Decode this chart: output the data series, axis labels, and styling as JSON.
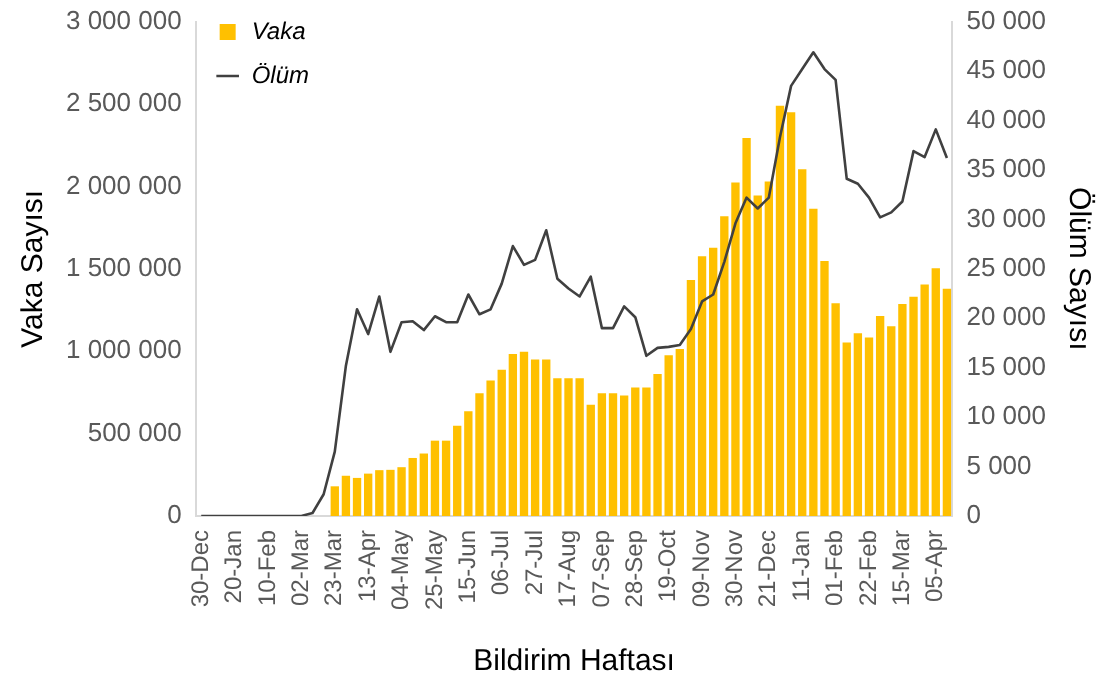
{
  "chart_data": {
    "type": "bar",
    "xlabel": "Bildirim Haftası",
    "ylabel": "Vaka Sayısı",
    "y2label": "Ölüm Sayısı",
    "categories": [
      "30-Dec",
      null,
      null,
      "20-Jan",
      null,
      null,
      "10-Feb",
      null,
      null,
      "02-Mar",
      null,
      null,
      "23-Mar",
      null,
      null,
      "13-Apr",
      null,
      null,
      "04-May",
      null,
      null,
      "25-May",
      null,
      null,
      "15-Jun",
      null,
      null,
      "06-Jul",
      null,
      null,
      "27-Jul",
      null,
      null,
      "17-Aug",
      null,
      null,
      "07-Sep",
      null,
      null,
      "28-Sep",
      null,
      null,
      "19-Oct",
      null,
      null,
      "09-Nov",
      null,
      null,
      "30-Nov",
      null,
      null,
      "21-Dec",
      null,
      null,
      "11-Jan",
      null,
      null,
      "01-Feb",
      null,
      null,
      "22-Feb",
      null,
      null,
      "15-Mar",
      null,
      null,
      "05-Apr",
      null
    ],
    "series": [
      {
        "name": "Vaka",
        "color": "#ffc000",
        "values": [
          0,
          0,
          0,
          0,
          0,
          0,
          0,
          0,
          0,
          0,
          0,
          0,
          180000,
          244000,
          231000,
          257000,
          278000,
          280000,
          296000,
          352000,
          379000,
          457000,
          457000,
          548000,
          636000,
          744000,
          822000,
          888000,
          983000,
          996000,
          949000,
          949000,
          835000,
          835000,
          835000,
          675000,
          744000,
          744000,
          731000,
          779000,
          779000,
          862000,
          975000,
          1014000,
          1432000,
          1576000,
          1628000,
          1819000,
          2023000,
          2293000,
          1945000,
          2030000,
          2489000,
          2450000,
          2104000,
          1865000,
          1548000,
          1291000,
          1052000,
          1109000,
          1083000,
          1213000,
          1152000,
          1287000,
          1330000,
          1405000,
          1504000,
          1379000
        ]
      },
      {
        "name": "Ölüm",
        "type": "line",
        "axis": "y2",
        "color": "#404040",
        "values": [
          0,
          0,
          0,
          0,
          0,
          0,
          0,
          0,
          0,
          0,
          300,
          2200,
          6500,
          15200,
          20900,
          18400,
          22200,
          16600,
          19600,
          19700,
          18800,
          20200,
          19600,
          19600,
          22400,
          20400,
          20900,
          23500,
          27300,
          25400,
          25900,
          28900,
          24000,
          23000,
          22200,
          24200,
          19000,
          19000,
          21200,
          20100,
          16200,
          17000,
          17100,
          17300,
          18900,
          21700,
          22400,
          25700,
          29600,
          32200,
          31100,
          32200,
          38300,
          43500,
          45200,
          46900,
          45200,
          44100,
          34100,
          33600,
          32200,
          30200,
          30700,
          31800,
          36900,
          36300,
          39100,
          36200
        ]
      }
    ],
    "ylim": [
      0,
      3000000
    ],
    "yticks": [
      0,
      500000,
      1000000,
      1500000,
      2000000,
      2500000,
      3000000
    ],
    "y2lim": [
      0,
      50000
    ],
    "y2ticks": [
      0,
      5000,
      10000,
      15000,
      20000,
      25000,
      30000,
      35000,
      40000,
      45000,
      50000
    ],
    "legend": "top left",
    "marker": "none",
    "grid": false
  }
}
